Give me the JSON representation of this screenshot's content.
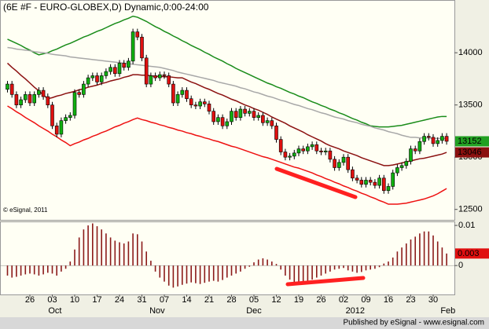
{
  "chart_data": [
    {
      "type": "candlestick",
      "title": "(6E #F - EURO-GLOBEX,D) Dynamic,0:00-24:00",
      "annotation": "© eSignal, 2011",
      "categories": [
        null,
        null,
        null,
        null,
        null,
        "26",
        null,
        null,
        null,
        null,
        "03",
        null,
        null,
        null,
        null,
        "10",
        null,
        null,
        null,
        null,
        "17",
        null,
        null,
        null,
        null,
        "24",
        null,
        null,
        null,
        null,
        "31",
        null,
        null,
        null,
        null,
        "07",
        null,
        null,
        null,
        null,
        "14",
        null,
        null,
        null,
        null,
        "21",
        null,
        null,
        null,
        null,
        "28",
        null,
        null,
        null,
        null,
        "05",
        null,
        null,
        null,
        null,
        "12",
        null,
        null,
        null,
        null,
        "19",
        null,
        null,
        null,
        null,
        "26",
        null,
        null,
        null,
        null,
        "02",
        null,
        null,
        null,
        null,
        "09",
        null,
        null,
        null,
        null,
        "16",
        null,
        null,
        null,
        null,
        "23",
        null,
        null,
        null,
        null,
        "30",
        null,
        null,
        null
      ],
      "x_groups": [
        "Oct",
        "Nov",
        "Dec",
        "2012",
        "Feb"
      ],
      "open": [
        13650,
        13700,
        13600,
        13500,
        13550,
        13600,
        13520,
        13600,
        13640,
        13580,
        13500,
        13300,
        13220,
        13350,
        13380,
        13400,
        13620,
        13600,
        13700,
        13760,
        13780,
        13720,
        13780,
        13820,
        13860,
        13800,
        13900,
        13860,
        13920,
        14200,
        14150,
        13950,
        13700,
        13780,
        13760,
        13790,
        13780,
        13700,
        13520,
        13600,
        13640,
        13560,
        13500,
        13490,
        13530,
        13510,
        13440,
        13340,
        13380,
        13300,
        13340,
        13440,
        13380,
        13460,
        13420,
        13440,
        13380,
        13400,
        13330,
        13350,
        13300,
        13170,
        13050,
        13000,
        13010,
        13040,
        13080,
        13060,
        13100,
        13120,
        13060,
        13050,
        13060,
        12980,
        12900,
        12950,
        13000,
        12880,
        12800,
        12780,
        12740,
        12780,
        12760,
        12730,
        12800,
        12680,
        12720,
        12850,
        12900,
        12920,
        12960,
        13080,
        13060,
        13150,
        13200,
        13190,
        13130,
        13160,
        13200
      ],
      "high": [
        13730,
        13730,
        13630,
        13580,
        13630,
        13630,
        13630,
        13670,
        13670,
        13610,
        13530,
        13330,
        13380,
        13410,
        13430,
        13650,
        13650,
        13730,
        13790,
        13810,
        13810,
        13810,
        13850,
        13890,
        13890,
        13930,
        13930,
        13950,
        14230,
        14230,
        14180,
        13980,
        13810,
        13810,
        13820,
        13820,
        13810,
        13730,
        13630,
        13670,
        13670,
        13590,
        13530,
        13560,
        13560,
        13540,
        13470,
        13410,
        13410,
        13370,
        13470,
        13470,
        13490,
        13490,
        13470,
        13470,
        13430,
        13430,
        13380,
        13380,
        13330,
        13200,
        13080,
        13040,
        13070,
        13110,
        13110,
        13130,
        13150,
        13150,
        13090,
        13090,
        13090,
        13010,
        12980,
        13030,
        13030,
        12910,
        12830,
        12810,
        12810,
        12810,
        12790,
        12830,
        12830,
        12750,
        12880,
        12930,
        12950,
        12990,
        13110,
        13110,
        13180,
        13230,
        13230,
        13220,
        13190,
        13230,
        13230
      ],
      "low": [
        13620,
        13570,
        13470,
        13470,
        13520,
        13490,
        13490,
        13570,
        13550,
        13470,
        13270,
        13190,
        13190,
        13320,
        13350,
        13370,
        13570,
        13570,
        13670,
        13730,
        13690,
        13690,
        13750,
        13790,
        13770,
        13770,
        13830,
        13830,
        13890,
        14120,
        13920,
        13670,
        13670,
        13730,
        13730,
        13750,
        13670,
        13490,
        13490,
        13570,
        13530,
        13470,
        13460,
        13460,
        13480,
        13410,
        13310,
        13310,
        13270,
        13270,
        13310,
        13350,
        13350,
        13390,
        13390,
        13350,
        13350,
        13300,
        13300,
        13270,
        13140,
        13020,
        12970,
        12970,
        12980,
        13010,
        13030,
        13030,
        13070,
        13030,
        13020,
        13020,
        12950,
        12870,
        12870,
        12920,
        12850,
        12770,
        12750,
        12710,
        12710,
        12730,
        12700,
        12700,
        12650,
        12650,
        12690,
        12820,
        12870,
        12890,
        12930,
        13030,
        13030,
        13120,
        13160,
        13100,
        13100,
        13130,
        13120
      ],
      "close": [
        13700,
        13600,
        13500,
        13550,
        13600,
        13520,
        13600,
        13640,
        13580,
        13500,
        13300,
        13220,
        13350,
        13380,
        13400,
        13620,
        13600,
        13700,
        13760,
        13780,
        13720,
        13780,
        13820,
        13860,
        13800,
        13900,
        13860,
        13920,
        14200,
        14150,
        13950,
        13700,
        13780,
        13760,
        13790,
        13780,
        13700,
        13520,
        13600,
        13640,
        13560,
        13500,
        13490,
        13530,
        13510,
        13440,
        13340,
        13380,
        13300,
        13340,
        13440,
        13380,
        13460,
        13420,
        13440,
        13380,
        13400,
        13330,
        13350,
        13300,
        13170,
        13050,
        13000,
        13010,
        13040,
        13080,
        13060,
        13100,
        13120,
        13060,
        13050,
        13060,
        12980,
        12900,
        12950,
        13000,
        12880,
        12800,
        12780,
        12740,
        12780,
        12760,
        12730,
        12800,
        12680,
        12720,
        12850,
        12900,
        12920,
        12960,
        13080,
        13060,
        13150,
        13200,
        13190,
        13130,
        13160,
        13200,
        13152
      ],
      "up_color": "#10b010",
      "down_color": "#e01010",
      "series": [
        {
          "color": "#1a8c1a",
          "values": [
            14130,
            14110,
            14090,
            14070,
            14045,
            14025,
            14000,
            13980,
            13990,
            14000,
            14020,
            14035,
            14055,
            14075,
            14090,
            14110,
            14130,
            14150,
            14165,
            14185,
            14205,
            14220,
            14240,
            14260,
            14280,
            14295,
            14315,
            14330,
            14350,
            14340,
            14320,
            14300,
            14275,
            14250,
            14230,
            14205,
            14185,
            14160,
            14140,
            14115,
            14095,
            14070,
            14050,
            14030,
            14005,
            13985,
            13960,
            13940,
            13920,
            13895,
            13875,
            13850,
            13830,
            13810,
            13790,
            13770,
            13750,
            13730,
            13710,
            13695,
            13675,
            13660,
            13640,
            13620,
            13605,
            13585,
            13570,
            13550,
            13530,
            13515,
            13495,
            13480,
            13460,
            13445,
            13425,
            13410,
            13390,
            13370,
            13355,
            13335,
            13320,
            13300,
            13295,
            13290,
            13290,
            13290,
            13295,
            13300,
            13305,
            13315,
            13325,
            13335,
            13345,
            13355,
            13365,
            13375,
            13385,
            13390,
            13390
          ]
        },
        {
          "color": "#a8a8a8",
          "values": [
            14050,
            14045,
            14035,
            14030,
            14025,
            14020,
            14010,
            14005,
            14000,
            13995,
            13985,
            13980,
            13975,
            13970,
            13960,
            13955,
            13950,
            13945,
            13940,
            13935,
            13930,
            13925,
            13920,
            13915,
            13910,
            13905,
            13900,
            13895,
            13890,
            13885,
            13880,
            13875,
            13870,
            13865,
            13860,
            13850,
            13840,
            13830,
            13815,
            13805,
            13795,
            13785,
            13775,
            13765,
            13755,
            13745,
            13735,
            13720,
            13710,
            13700,
            13690,
            13680,
            13665,
            13655,
            13640,
            13625,
            13615,
            13600,
            13585,
            13575,
            13560,
            13545,
            13535,
            13520,
            13505,
            13495,
            13480,
            13465,
            13455,
            13440,
            13425,
            13415,
            13400,
            13385,
            13375,
            13365,
            13350,
            13340,
            13330,
            13315,
            13305,
            13295,
            13280,
            13270,
            13260,
            13245,
            13235,
            13225,
            13210,
            13200,
            13190,
            13190,
            13185,
            13185,
            13185,
            13180,
            13180,
            13180,
            13180
          ]
        },
        {
          "color": "#8b1010",
          "values": [
            13900,
            13860,
            13825,
            13785,
            13750,
            13710,
            13670,
            13635,
            13595,
            13560,
            13570,
            13585,
            13595,
            13610,
            13620,
            13630,
            13645,
            13655,
            13670,
            13680,
            13690,
            13705,
            13715,
            13730,
            13740,
            13750,
            13765,
            13775,
            13790,
            13790,
            13785,
            13785,
            13780,
            13775,
            13775,
            13770,
            13770,
            13765,
            13760,
            13760,
            13740,
            13720,
            13705,
            13685,
            13665,
            13650,
            13630,
            13610,
            13595,
            13575,
            13555,
            13540,
            13520,
            13500,
            13485,
            13465,
            13450,
            13430,
            13410,
            13385,
            13365,
            13345,
            13325,
            13300,
            13280,
            13260,
            13240,
            13215,
            13195,
            13175,
            13155,
            13130,
            13110,
            13095,
            13080,
            13060,
            13045,
            13030,
            13015,
            12995,
            12980,
            12965,
            12950,
            12935,
            12920,
            12920,
            12925,
            12935,
            12945,
            12955,
            12965,
            12975,
            12985,
            12990,
            13000,
            13010,
            13020,
            13030,
            13046
          ]
        },
        {
          "color": "#ee1111",
          "values": [
            13490,
            13465,
            13435,
            13410,
            13380,
            13355,
            13330,
            13300,
            13275,
            13250,
            13220,
            13195,
            13165,
            13140,
            13110,
            13130,
            13145,
            13165,
            13180,
            13200,
            13215,
            13235,
            13250,
            13270,
            13290,
            13305,
            13325,
            13340,
            13360,
            13375,
            13360,
            13350,
            13335,
            13325,
            13310,
            13300,
            13285,
            13275,
            13260,
            13250,
            13235,
            13225,
            13210,
            13200,
            13185,
            13175,
            13160,
            13150,
            13135,
            13120,
            13105,
            13095,
            13080,
            13065,
            13050,
            13035,
            13020,
            13005,
            12995,
            12980,
            12965,
            12950,
            12935,
            12920,
            12905,
            12895,
            12880,
            12865,
            12850,
            12830,
            12815,
            12795,
            12780,
            12760,
            12745,
            12725,
            12710,
            12690,
            12675,
            12655,
            12640,
            12620,
            12605,
            12585,
            12570,
            12550,
            12550,
            12550,
            12555,
            12560,
            12570,
            12580,
            12590,
            12600,
            12615,
            12630,
            12650,
            12675,
            12700
          ]
        }
      ],
      "ylim": [
        12400,
        14490
      ],
      "yticks": [
        12500,
        13000,
        13500,
        14000
      ]
    },
    {
      "type": "bar",
      "color": "#8b1a1a",
      "values": [
        -0.0025,
        -0.003,
        -0.0028,
        -0.0025,
        -0.0022,
        -0.002,
        -0.0022,
        -0.0025,
        -0.0022,
        -0.0018,
        -0.002,
        -0.0025,
        -0.0015,
        -0.0008,
        0.001,
        0.004,
        0.007,
        0.009,
        0.01,
        0.0105,
        0.0098,
        0.009,
        0.008,
        0.007,
        0.0062,
        0.0058,
        0.0055,
        0.006,
        0.008,
        0.0078,
        0.006,
        0.0035,
        0.0012,
        -0.0015,
        -0.003,
        -0.004,
        -0.005,
        -0.0055,
        -0.0052,
        -0.0048,
        -0.0045,
        -0.0042,
        -0.0044,
        -0.0046,
        -0.0043,
        -0.004,
        -0.0038,
        -0.004,
        -0.0036,
        -0.003,
        -0.0025,
        -0.002,
        -0.0015,
        -0.0008,
        -0.0003,
        0.0008,
        0.0015,
        0.0018,
        0.0015,
        0.001,
        0.0004,
        -0.001,
        -0.0025,
        -0.0035,
        -0.0042,
        -0.0045,
        -0.0044,
        -0.004,
        -0.0035,
        -0.003,
        -0.0025,
        -0.002,
        -0.0015,
        -0.001,
        -0.0008,
        -0.0006,
        -0.0012,
        -0.0015,
        -0.0018,
        -0.0016,
        -0.0012,
        -0.001,
        -0.0008,
        -0.0004,
        0.0005,
        0.001,
        0.002,
        0.0035,
        0.0045,
        0.0055,
        0.0065,
        0.0072,
        0.008,
        0.0085,
        0.0085,
        0.0075,
        0.006,
        0.0045,
        0.003
      ],
      "ylim": [
        -0.0072,
        0.0108
      ],
      "yticks": [
        0,
        0.01
      ]
    }
  ],
  "footer": "Published by eSignal - www.esignal.com"
}
